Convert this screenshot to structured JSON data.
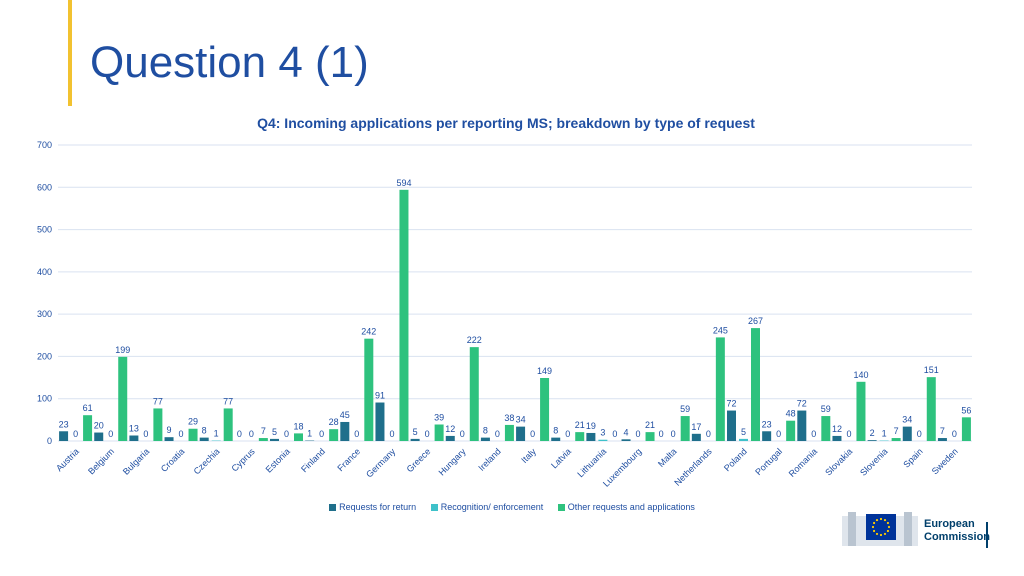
{
  "page": {
    "title": "Question 4 (1)"
  },
  "logo": {
    "line1": "European",
    "line2": "Commission"
  },
  "colors": {
    "accent": "#f2c230",
    "title": "#1f4ea1",
    "return": "#1f6f8b",
    "recognition": "#3ec1c9",
    "other": "#2ec27e",
    "grid": "#d9e2f0",
    "label": "#1f4ea1"
  },
  "chart_data": {
    "type": "bar",
    "title": "Q4: Incoming applications per reporting MS; breakdown by type of request",
    "categories": [
      "Austria",
      "Belgium",
      "Bulgaria",
      "Croatia",
      "Czechia",
      "Cyprus",
      "Estonia",
      "Finland",
      "France",
      "Germany",
      "Greece",
      "Hungary",
      "Ireland",
      "Italy",
      "Latvia",
      "Lithuania",
      "Luxembourg",
      "Malta",
      "Netherlands",
      "Poland",
      "Portugal",
      "Romania",
      "Slovakia",
      "Slovenia",
      "Spain",
      "Sweden"
    ],
    "series": [
      {
        "name": "Requests for return",
        "values": [
          23,
          20,
          13,
          9,
          8,
          0,
          5,
          1,
          45,
          91,
          5,
          12,
          8,
          34,
          8,
          19,
          4,
          0,
          17,
          72,
          23,
          72,
          12,
          2,
          34,
          7
        ]
      },
      {
        "name": "Recognition/ enforcement",
        "values": [
          0,
          0,
          0,
          0,
          1,
          0,
          0,
          0,
          0,
          0,
          0,
          0,
          0,
          0,
          0,
          3,
          0,
          0,
          0,
          5,
          0,
          0,
          0,
          1,
          0,
          0
        ]
      },
      {
        "name": "Other requests and applications",
        "values": [
          61,
          199,
          77,
          29,
          77,
          7,
          18,
          28,
          242,
          594,
          39,
          222,
          38,
          149,
          21,
          0,
          21,
          59,
          245,
          267,
          48,
          59,
          140,
          7,
          151,
          56
        ]
      }
    ],
    "ylim": [
      0,
      700
    ],
    "yticks": [
      0,
      100,
      200,
      300,
      400,
      500,
      600,
      700
    ],
    "grid": true,
    "legend": "bottom"
  }
}
